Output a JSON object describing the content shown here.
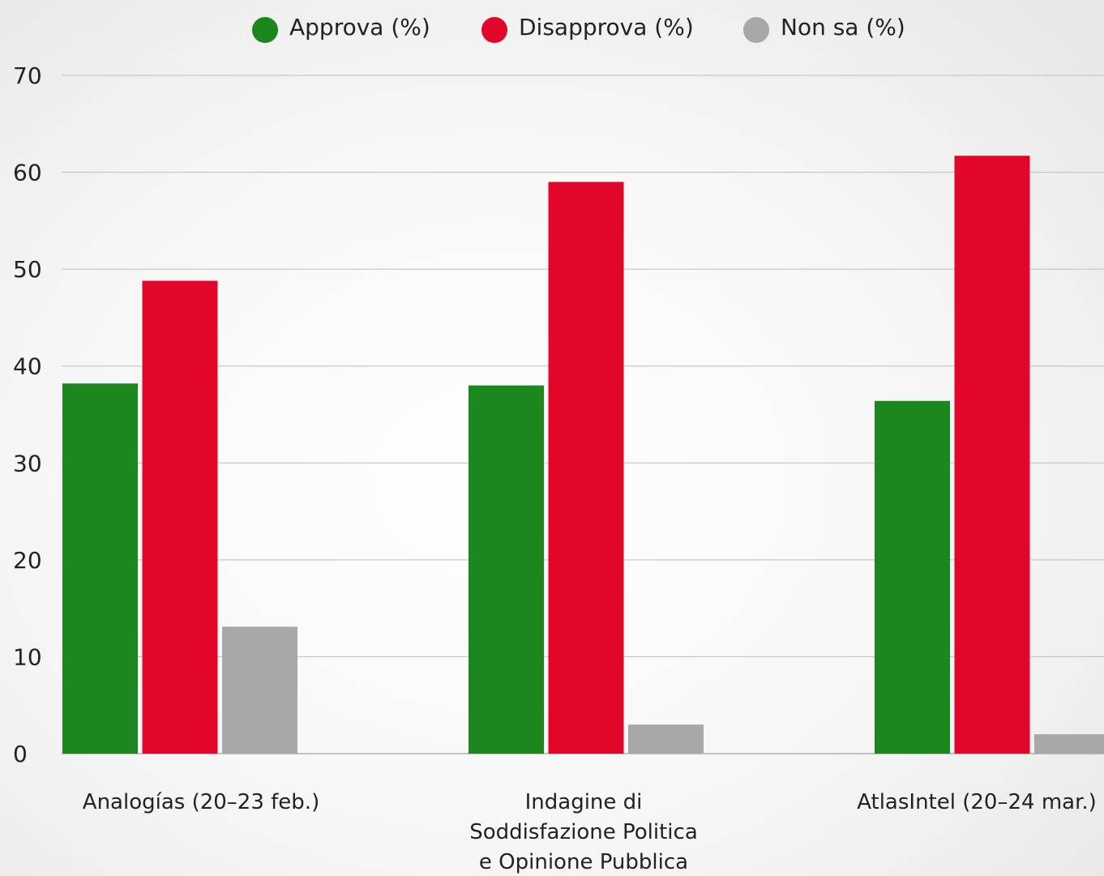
{
  "chart_data": {
    "type": "bar",
    "categories": [
      [
        "Analogías (20–23 feb.)"
      ],
      [
        "Indagine di",
        "Soddisfazione Politica",
        "e Opinione Pubblica"
      ],
      [
        "AtlasIntel (20–24 mar.)"
      ]
    ],
    "series": [
      {
        "name": "Approva (%)",
        "color": "#1b871c",
        "values": [
          38.2,
          38.0,
          36.4
        ]
      },
      {
        "name": "Disapprova (%)",
        "color": "#e3062b",
        "values": [
          48.8,
          59.0,
          61.7
        ]
      },
      {
        "name": "Non sa (%)",
        "color": "#a8a8a8",
        "values": [
          13.1,
          3.0,
          2.0
        ]
      }
    ],
    "ylim": [
      0,
      70
    ],
    "yticks": [
      0,
      10,
      20,
      30,
      40,
      50,
      60,
      70
    ],
    "grid": true,
    "legend_position": "top-center"
  }
}
